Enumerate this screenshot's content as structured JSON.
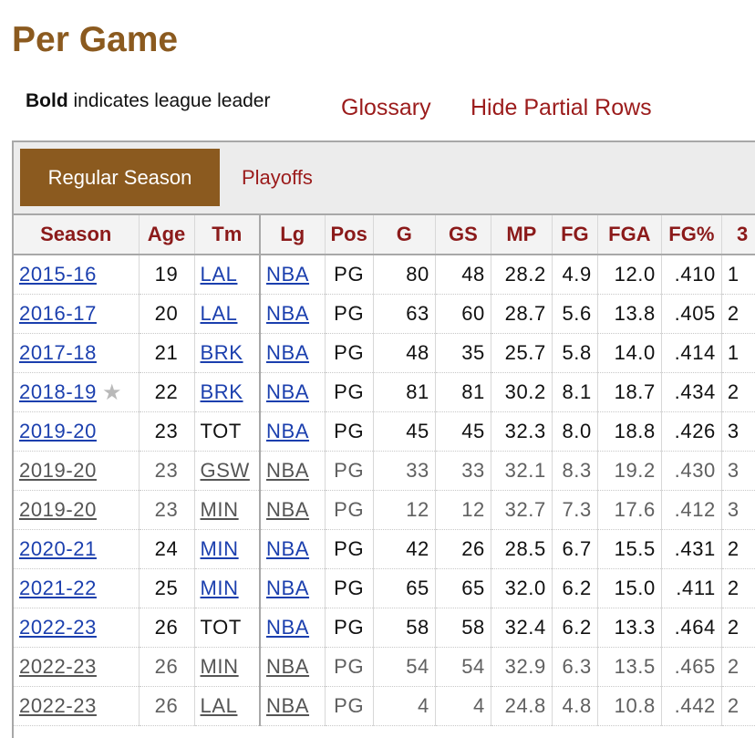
{
  "title": "Per Game",
  "note": {
    "bold": "Bold",
    "rest": " indicates league leader"
  },
  "links": {
    "glossary": "Glossary",
    "hide_partial": "Hide Partial Rows"
  },
  "tabs": {
    "active": "Regular Season",
    "other": "Playoffs"
  },
  "colors": {
    "brand": "#8b5a1f",
    "link_red": "#9b1b1b",
    "link_blue": "#1b3fae"
  },
  "columns": [
    "Season",
    "Age",
    "Tm",
    "Lg",
    "Pos",
    "G",
    "GS",
    "MP",
    "FG",
    "FGA",
    "FG%",
    "3"
  ],
  "rows": [
    {
      "partial": false,
      "star": false,
      "season": "2015-16",
      "age": "19",
      "team": "LAL",
      "team_link": true,
      "lg": "NBA",
      "pos": "PG",
      "g": "80",
      "gs": "48",
      "mp": "28.2",
      "fg": "4.9",
      "fga": "12.0",
      "fgp": ".410",
      "x": "1"
    },
    {
      "partial": false,
      "star": false,
      "season": "2016-17",
      "age": "20",
      "team": "LAL",
      "team_link": true,
      "lg": "NBA",
      "pos": "PG",
      "g": "63",
      "gs": "60",
      "mp": "28.7",
      "fg": "5.6",
      "fga": "13.8",
      "fgp": ".405",
      "x": "2"
    },
    {
      "partial": false,
      "star": false,
      "season": "2017-18",
      "age": "21",
      "team": "BRK",
      "team_link": true,
      "lg": "NBA",
      "pos": "PG",
      "g": "48",
      "gs": "35",
      "mp": "25.7",
      "fg": "5.8",
      "fga": "14.0",
      "fgp": ".414",
      "x": "1"
    },
    {
      "partial": false,
      "star": true,
      "season": "2018-19",
      "age": "22",
      "team": "BRK",
      "team_link": true,
      "lg": "NBA",
      "pos": "PG",
      "g": "81",
      "gs": "81",
      "mp": "30.2",
      "fg": "8.1",
      "fga": "18.7",
      "fgp": ".434",
      "x": "2"
    },
    {
      "partial": false,
      "star": false,
      "season": "2019-20",
      "age": "23",
      "team": "TOT",
      "team_link": false,
      "lg": "NBA",
      "pos": "PG",
      "g": "45",
      "gs": "45",
      "mp": "32.3",
      "fg": "8.0",
      "fga": "18.8",
      "fgp": ".426",
      "x": "3"
    },
    {
      "partial": true,
      "star": false,
      "season": "2019-20",
      "age": "23",
      "team": "GSW",
      "team_link": true,
      "lg": "NBA",
      "pos": "PG",
      "g": "33",
      "gs": "33",
      "mp": "32.1",
      "fg": "8.3",
      "fga": "19.2",
      "fgp": ".430",
      "x": "3"
    },
    {
      "partial": true,
      "star": false,
      "season": "2019-20",
      "age": "23",
      "team": "MIN",
      "team_link": true,
      "lg": "NBA",
      "pos": "PG",
      "g": "12",
      "gs": "12",
      "mp": "32.7",
      "fg": "7.3",
      "fga": "17.6",
      "fgp": ".412",
      "x": "3"
    },
    {
      "partial": false,
      "star": false,
      "season": "2020-21",
      "age": "24",
      "team": "MIN",
      "team_link": true,
      "lg": "NBA",
      "pos": "PG",
      "g": "42",
      "gs": "26",
      "mp": "28.5",
      "fg": "6.7",
      "fga": "15.5",
      "fgp": ".431",
      "x": "2"
    },
    {
      "partial": false,
      "star": false,
      "season": "2021-22",
      "age": "25",
      "team": "MIN",
      "team_link": true,
      "lg": "NBA",
      "pos": "PG",
      "g": "65",
      "gs": "65",
      "mp": "32.0",
      "fg": "6.2",
      "fga": "15.0",
      "fgp": ".411",
      "x": "2"
    },
    {
      "partial": false,
      "star": false,
      "season": "2022-23",
      "age": "26",
      "team": "TOT",
      "team_link": false,
      "lg": "NBA",
      "pos": "PG",
      "g": "58",
      "gs": "58",
      "mp": "32.4",
      "fg": "6.2",
      "fga": "13.3",
      "fgp": ".464",
      "x": "2"
    },
    {
      "partial": true,
      "star": false,
      "season": "2022-23",
      "age": "26",
      "team": "MIN",
      "team_link": true,
      "lg": "NBA",
      "pos": "PG",
      "g": "54",
      "gs": "54",
      "mp": "32.9",
      "fg": "6.3",
      "fga": "13.5",
      "fgp": ".465",
      "x": "2"
    },
    {
      "partial": true,
      "star": false,
      "season": "2022-23",
      "age": "26",
      "team": "LAL",
      "team_link": true,
      "lg": "NBA",
      "pos": "PG",
      "g": "4",
      "gs": "4",
      "mp": "24.8",
      "fg": "4.8",
      "fga": "10.8",
      "fgp": ".442",
      "x": "2"
    }
  ]
}
